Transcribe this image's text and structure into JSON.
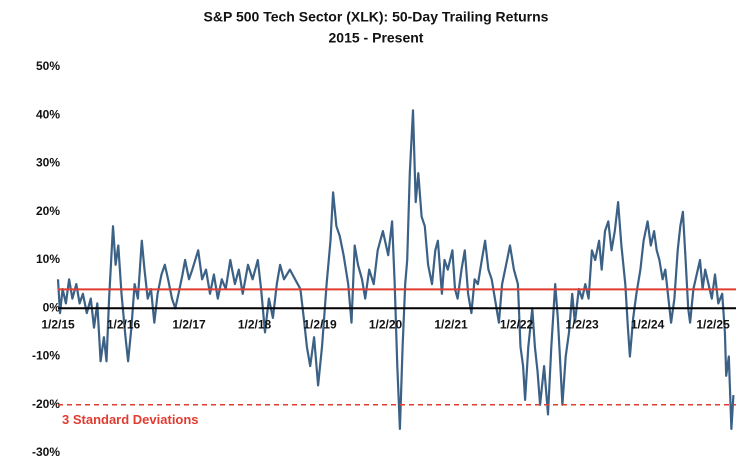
{
  "chart_data": {
    "type": "line",
    "title": "S&P 500 Tech Sector (XLK): 50-Day Trailing Returns",
    "subtitle": "2015 - Present",
    "x": [
      2015.0,
      2015.03,
      2015.07,
      2015.12,
      2015.17,
      2015.22,
      2015.28,
      2015.33,
      2015.38,
      2015.44,
      2015.5,
      2015.55,
      2015.6,
      2015.65,
      2015.7,
      2015.74,
      2015.78,
      2015.84,
      2015.88,
      2015.92,
      2015.97,
      2016.03,
      2016.07,
      2016.12,
      2016.17,
      2016.22,
      2016.28,
      2016.32,
      2016.37,
      2016.42,
      2016.47,
      2016.52,
      2016.58,
      2016.63,
      2016.68,
      2016.74,
      2016.79,
      2016.84,
      2016.9,
      2016.94,
      2017.0,
      2017.05,
      2017.14,
      2017.2,
      2017.26,
      2017.32,
      2017.38,
      2017.44,
      2017.5,
      2017.56,
      2017.63,
      2017.7,
      2017.76,
      2017.82,
      2017.9,
      2017.97,
      2018.05,
      2018.1,
      2018.16,
      2018.22,
      2018.28,
      2018.34,
      2018.39,
      2018.45,
      2018.54,
      2018.62,
      2018.7,
      2018.76,
      2018.8,
      2018.85,
      2018.91,
      2018.97,
      2019.03,
      2019.1,
      2019.16,
      2019.2,
      2019.25,
      2019.3,
      2019.36,
      2019.43,
      2019.48,
      2019.53,
      2019.58,
      2019.64,
      2019.69,
      2019.75,
      2019.82,
      2019.88,
      2019.96,
      2020.04,
      2020.1,
      2020.14,
      2020.18,
      2020.22,
      2020.26,
      2020.3,
      2020.33,
      2020.37,
      2020.42,
      2020.46,
      2020.5,
      2020.55,
      2020.6,
      2020.65,
      2020.71,
      2020.76,
      2020.8,
      2020.86,
      2020.9,
      2020.95,
      2021.02,
      2021.06,
      2021.1,
      2021.16,
      2021.21,
      2021.26,
      2021.31,
      2021.36,
      2021.41,
      2021.47,
      2021.52,
      2021.57,
      2021.62,
      2021.67,
      2021.73,
      2021.78,
      2021.84,
      2021.9,
      2021.96,
      2022.02,
      2022.06,
      2022.1,
      2022.13,
      2022.18,
      2022.24,
      2022.28,
      2022.32,
      2022.36,
      2022.42,
      2022.48,
      2022.53,
      2022.59,
      2022.63,
      2022.67,
      2022.7,
      2022.75,
      2022.8,
      2022.85,
      2022.89,
      2022.95,
      2023.0,
      2023.05,
      2023.1,
      2023.15,
      2023.2,
      2023.26,
      2023.3,
      2023.35,
      2023.4,
      2023.45,
      2023.5,
      2023.55,
      2023.6,
      2023.66,
      2023.7,
      2023.73,
      2023.78,
      2023.83,
      2023.89,
      2023.94,
      2024.0,
      2024.05,
      2024.1,
      2024.14,
      2024.18,
      2024.23,
      2024.27,
      2024.31,
      2024.36,
      2024.41,
      2024.46,
      2024.5,
      2024.54,
      2024.58,
      2024.62,
      2024.65,
      2024.7,
      2024.75,
      2024.8,
      2024.84,
      2024.88,
      2024.93,
      2024.98,
      2025.03,
      2025.08,
      2025.14,
      2025.18,
      2025.2,
      2025.24,
      2025.28,
      2025.31
    ],
    "series": [
      {
        "color": "#3c6186",
        "values": [
          6,
          -1,
          4,
          1,
          6,
          2,
          5,
          1,
          3,
          -1,
          2,
          -4,
          1,
          -11,
          -6,
          -11,
          2,
          17,
          9,
          13,
          3,
          -6,
          -11,
          -4,
          5,
          2,
          14,
          8,
          2,
          4,
          -3,
          3,
          7,
          9,
          6,
          2,
          0,
          3,
          7,
          10,
          6,
          8,
          12,
          6,
          8,
          3,
          7,
          2,
          6,
          4,
          10,
          5,
          8,
          3,
          9,
          6,
          10,
          4,
          -5,
          2,
          -2,
          5,
          9,
          6,
          8,
          6,
          4,
          -3,
          -8,
          -12,
          -6,
          -16,
          -8,
          5,
          14,
          24,
          17,
          15,
          11,
          5,
          -3,
          13,
          9,
          6,
          2,
          8,
          5,
          12,
          16,
          11,
          18,
          5,
          -12,
          -25,
          -8,
          5,
          10,
          28,
          41,
          22,
          28,
          19,
          17,
          9,
          5,
          12,
          14,
          3,
          10,
          8,
          12,
          4,
          2,
          8,
          12,
          3,
          -1,
          6,
          5,
          10,
          14,
          8,
          6,
          2,
          -3,
          5,
          9,
          13,
          8,
          5,
          -8,
          -12,
          -19,
          -8,
          0,
          -8,
          -13,
          -20,
          -12,
          -22,
          -8,
          5,
          -2,
          -12,
          -20,
          -10,
          -5,
          3,
          -3,
          4,
          2,
          5,
          2,
          12,
          10,
          14,
          8,
          16,
          18,
          12,
          16,
          22,
          13,
          5,
          -4,
          -10,
          -2,
          3,
          8,
          14,
          18,
          13,
          16,
          12,
          10,
          6,
          8,
          3,
          -3,
          2,
          12,
          17,
          20,
          10,
          0,
          -3,
          4,
          7,
          10,
          4,
          8,
          5,
          2,
          7,
          1,
          3,
          -5,
          -14,
          -10,
          -25,
          -18
        ]
      }
    ],
    "xlim": [
      2015,
      2025.35
    ],
    "xticks": [
      {
        "value": 2015,
        "label": "1/2/15"
      },
      {
        "value": 2016,
        "label": "1/2/16"
      },
      {
        "value": 2017,
        "label": "1/2/17"
      },
      {
        "value": 2018,
        "label": "1/2/18"
      },
      {
        "value": 2019,
        "label": "1/2/19"
      },
      {
        "value": 2020,
        "label": "1/2/20"
      },
      {
        "value": 2021,
        "label": "1/2/21"
      },
      {
        "value": 2022,
        "label": "1/2/22"
      },
      {
        "value": 2023,
        "label": "1/2/23"
      },
      {
        "value": 2024,
        "label": "1/2/24"
      },
      {
        "value": 2025,
        "label": "1/2/25"
      }
    ],
    "ylim": [
      -30,
      50
    ],
    "yticks": [
      {
        "value": 50,
        "label": "50%"
      },
      {
        "value": 40,
        "label": "40%"
      },
      {
        "value": 30,
        "label": "30%"
      },
      {
        "value": 20,
        "label": "20%"
      },
      {
        "value": 10,
        "label": "10%"
      },
      {
        "value": 0,
        "label": "0%"
      },
      {
        "value": -10,
        "label": "-10%"
      },
      {
        "value": -20,
        "label": "-20%"
      },
      {
        "value": -30,
        "label": "-30%"
      }
    ],
    "reference_lines": [
      {
        "value": 3.9,
        "color": "#e03c31"
      }
    ],
    "annotations": [
      {
        "text": "3 Standard Deviations",
        "value": -20,
        "color": "#e03c31"
      }
    ]
  }
}
